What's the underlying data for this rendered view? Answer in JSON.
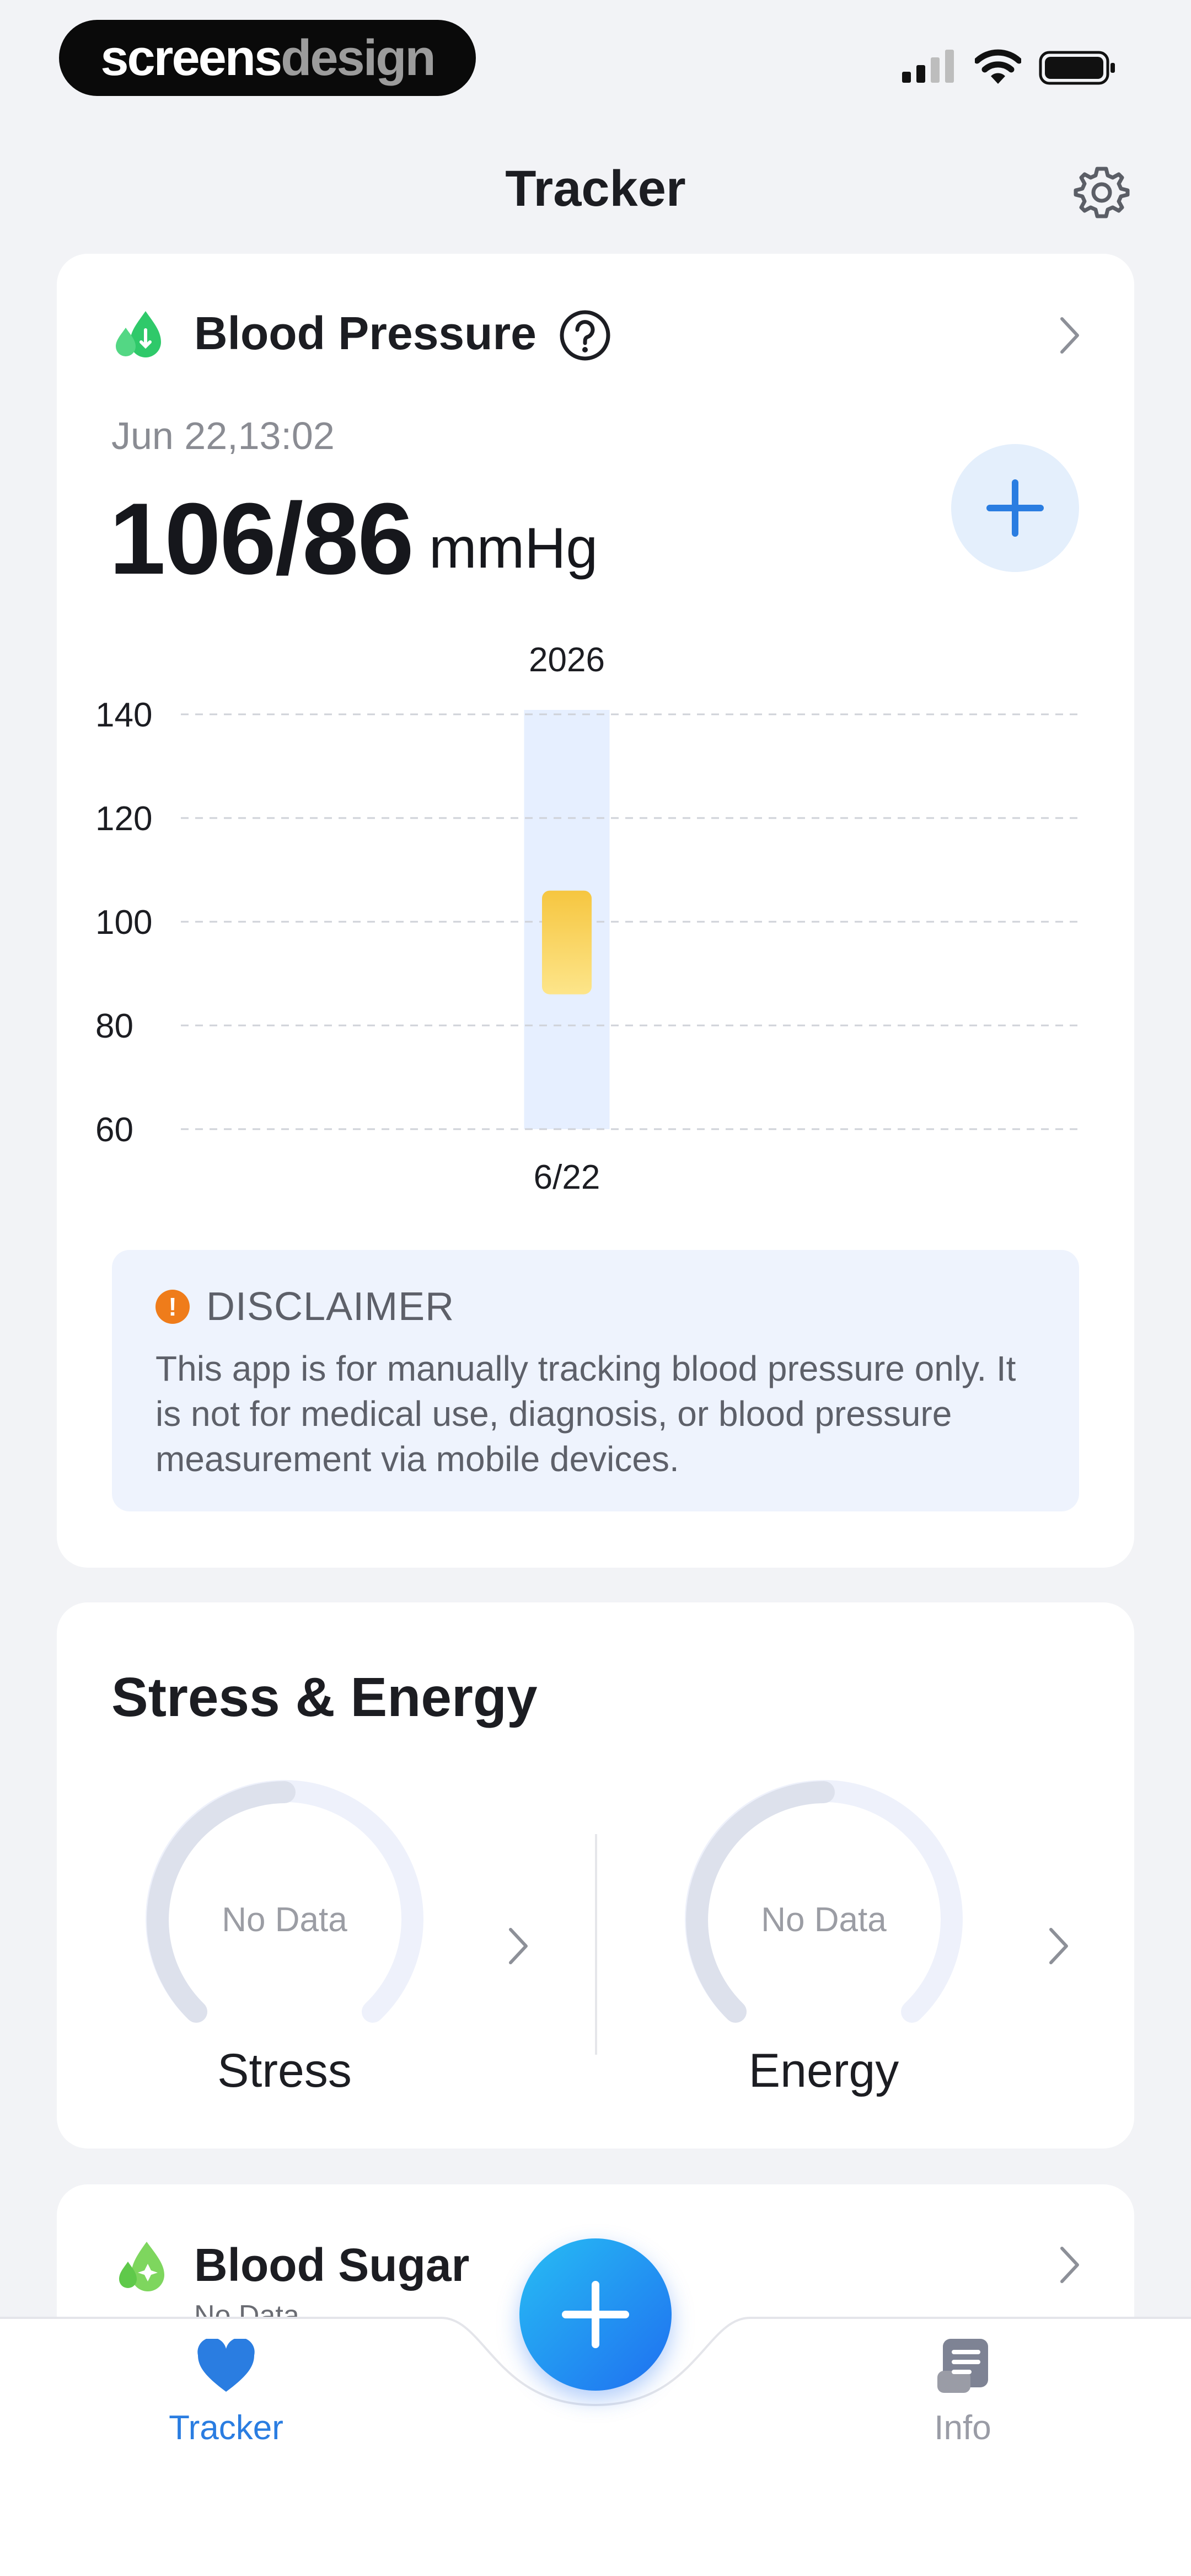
{
  "status_bar": {
    "brand_a": "screens",
    "brand_b": "design"
  },
  "header": {
    "title": "Tracker"
  },
  "blood_pressure": {
    "title": "Blood Pressure",
    "date": "Jun 22,13:02",
    "value": "106/86",
    "unit": "mmHg",
    "chart_data": {
      "type": "bar",
      "year_label": "2026",
      "categories": [
        "6/22"
      ],
      "y_ticks": [
        "140",
        "120",
        "100",
        "80",
        "60"
      ],
      "ylim": [
        60,
        140
      ],
      "series": [
        {
          "values": [
            [
              86,
              106
            ]
          ]
        }
      ],
      "grid": true,
      "colors": {
        "range_bar": "#f6c640",
        "column_bg": "#e6efff"
      }
    },
    "disclaimer": {
      "title": "DISCLAIMER",
      "body": "This app is for manually tracking blood pressure only. It is not for medical use, diagnosis, or blood pressure measurement via mobile devices."
    }
  },
  "stress_energy": {
    "title": "Stress & Energy",
    "stress": {
      "status": "No Data",
      "label": "Stress"
    },
    "energy": {
      "status": "No Data",
      "label": "Energy"
    }
  },
  "blood_sugar": {
    "title": "Blood Sugar",
    "subtitle": "No Data"
  },
  "nav": {
    "tracker_label": "Tracker",
    "info_label": "Info",
    "accent": "#2a7de1",
    "inactive": "#9a9ca6"
  }
}
